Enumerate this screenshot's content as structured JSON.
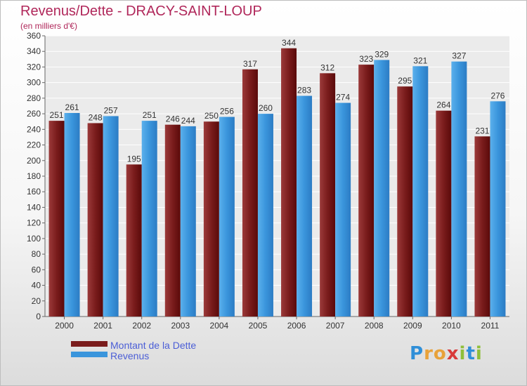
{
  "title": "Revenus/Dette - DRACY-SAINT-LOUP",
  "subtitle": "(en milliers d'€)",
  "colors": {
    "dette": "#7a1c1c",
    "revenus": "#3a95dc",
    "title": "#b0275a",
    "legend_text": "#4b5ed6"
  },
  "legend": {
    "dette_label": "Montant de la Dette",
    "revenus_label": "Revenus"
  },
  "logo": {
    "text": "Proxiti"
  },
  "chart_data": {
    "type": "bar",
    "title": "Revenus/Dette - DRACY-SAINT-LOUP",
    "subtitle": "(en milliers d'€)",
    "xlabel": "",
    "ylabel": "",
    "ylim": [
      0,
      360
    ],
    "ytick_step": 20,
    "grid": true,
    "legend_position": "bottom-left",
    "categories": [
      "2000",
      "2001",
      "2002",
      "2003",
      "2004",
      "2005",
      "2006",
      "2007",
      "2008",
      "2009",
      "2010",
      "2011"
    ],
    "series": [
      {
        "name": "Montant de la Dette",
        "values": [
          251,
          248,
          195,
          246,
          250,
          317,
          344,
          312,
          323,
          295,
          264,
          231
        ]
      },
      {
        "name": "Revenus",
        "values": [
          261,
          257,
          251,
          244,
          256,
          260,
          283,
          274,
          329,
          321,
          327,
          276
        ]
      }
    ]
  }
}
